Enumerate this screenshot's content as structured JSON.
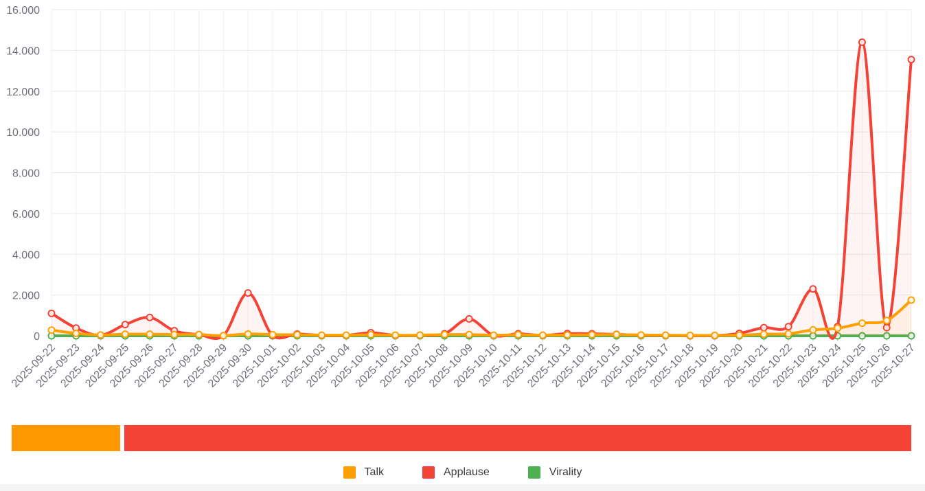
{
  "chart_data": {
    "type": "line",
    "title": "",
    "xlabel": "",
    "ylabel": "",
    "smooth": true,
    "grid": true,
    "markers": "hollow-circle",
    "legend_position": "bottom",
    "ylim": [
      0,
      16000
    ],
    "y_tick_labels": [
      "0",
      "2.000",
      "4.000",
      "6.000",
      "8.000",
      "10.000",
      "12.000",
      "14.000",
      "16.000"
    ],
    "categories": [
      "2025-09-22",
      "2025-09-23",
      "2025-09-24",
      "2025-09-25",
      "2025-09-26",
      "2025-09-27",
      "2025-09-28",
      "2025-09-29",
      "2025-09-30",
      "2025-10-01",
      "2025-10-02",
      "2025-10-03",
      "2025-10-04",
      "2025-10-05",
      "2025-10-06",
      "2025-10-07",
      "2025-10-08",
      "2025-10-09",
      "2025-10-10",
      "2025-10-11",
      "2025-10-12",
      "2025-10-13",
      "2025-10-14",
      "2025-10-15",
      "2025-10-16",
      "2025-10-17",
      "2025-10-18",
      "2025-10-19",
      "2025-10-20",
      "2025-10-21",
      "2025-10-22",
      "2025-10-23",
      "2025-10-24",
      "2025-10-25",
      "2025-10-26",
      "2025-10-27"
    ],
    "series": [
      {
        "name": "Virality",
        "color": "#4CAF50",
        "values": [
          0,
          0,
          0,
          0,
          0,
          0,
          0,
          0,
          0,
          0,
          0,
          0,
          0,
          0,
          0,
          0,
          0,
          0,
          0,
          0,
          0,
          0,
          0,
          0,
          0,
          0,
          0,
          0,
          0,
          0,
          0,
          0,
          0,
          0,
          0,
          0
        ]
      },
      {
        "name": "Applause",
        "color": "#F44336",
        "values": [
          1100,
          380,
          30,
          550,
          900,
          250,
          60,
          10,
          2100,
          20,
          90,
          20,
          20,
          150,
          20,
          30,
          100,
          830,
          20,
          100,
          20,
          110,
          100,
          70,
          30,
          20,
          10,
          10,
          120,
          400,
          450,
          2300,
          450,
          14400,
          400,
          13550
        ]
      },
      {
        "name": "Talk",
        "color": "#FFA000",
        "values": [
          280,
          120,
          40,
          80,
          80,
          60,
          60,
          10,
          90,
          60,
          50,
          30,
          30,
          50,
          30,
          30,
          60,
          60,
          30,
          50,
          30,
          40,
          50,
          60,
          40,
          30,
          20,
          20,
          30,
          80,
          100,
          290,
          370,
          620,
          750,
          1750
        ]
      }
    ]
  },
  "legend": {
    "items": [
      {
        "label": "Talk",
        "color": "#FFA000"
      },
      {
        "label": "Applause",
        "color": "#F44336"
      },
      {
        "label": "Virality",
        "color": "#4CAF50"
      }
    ]
  },
  "bottom_bar": {
    "segments": [
      {
        "name": "talk-range-segment",
        "label": "Talk",
        "color": "#FF9800",
        "width_pct": 12.06
      },
      {
        "name": "applause-range-segment",
        "label": "Applause",
        "color": "#F44336",
        "width_pct": 87.48
      }
    ]
  },
  "colors": {
    "axis_label": "#6E7079",
    "grid_h": "#E8E8E8",
    "grid_v": "#F0F0F0",
    "axis_line": "#CCCCCC",
    "footer_strip": "#F4F4F5"
  }
}
